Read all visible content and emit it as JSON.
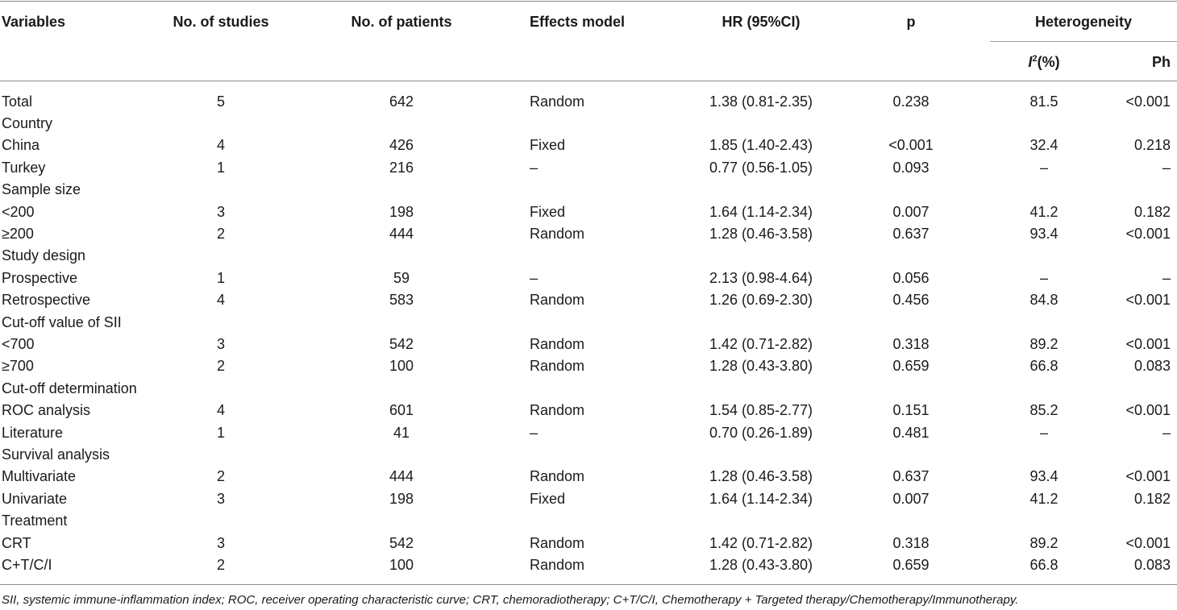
{
  "headers": {
    "variables": "Variables",
    "studies": "No. of studies",
    "patients": "No. of patients",
    "effects": "Effects model",
    "hr": "HR (95%CI)",
    "p": "p",
    "heterogeneity": "Heterogeneity",
    "i2_base": "I",
    "i2_sup": "2",
    "i2_suffix": "(%)",
    "ph": "Ph"
  },
  "rows": [
    {
      "variable": "Total",
      "studies": "5",
      "patients": "642",
      "effects": "Random",
      "hr": "1.38 (0.81-2.35)",
      "p": "0.238",
      "i2": "81.5",
      "ph": "<0.001"
    },
    {
      "variable": "Country",
      "studies": "",
      "patients": "",
      "effects": "",
      "hr": "",
      "p": "",
      "i2": "",
      "ph": ""
    },
    {
      "variable": "China",
      "studies": "4",
      "patients": "426",
      "effects": "Fixed",
      "hr": "1.85 (1.40-2.43)",
      "p": "<0.001",
      "i2": "32.4",
      "ph": "0.218"
    },
    {
      "variable": "Turkey",
      "studies": "1",
      "patients": "216",
      "effects": "–",
      "hr": "0.77 (0.56-1.05)",
      "p": "0.093",
      "i2": "–",
      "ph": "–"
    },
    {
      "variable": "Sample size",
      "studies": "",
      "patients": "",
      "effects": "",
      "hr": "",
      "p": "",
      "i2": "",
      "ph": ""
    },
    {
      "variable": "<200",
      "studies": "3",
      "patients": "198",
      "effects": "Fixed",
      "hr": "1.64 (1.14-2.34)",
      "p": "0.007",
      "i2": "41.2",
      "ph": "0.182"
    },
    {
      "variable": "≥200",
      "studies": "2",
      "patients": "444",
      "effects": "Random",
      "hr": "1.28 (0.46-3.58)",
      "p": "0.637",
      "i2": "93.4",
      "ph": "<0.001"
    },
    {
      "variable": "Study design",
      "studies": "",
      "patients": "",
      "effects": "",
      "hr": "",
      "p": "",
      "i2": "",
      "ph": ""
    },
    {
      "variable": "Prospective",
      "studies": "1",
      "patients": "59",
      "effects": "–",
      "hr": "2.13 (0.98-4.64)",
      "p": "0.056",
      "i2": "–",
      "ph": "–"
    },
    {
      "variable": "Retrospective",
      "studies": "4",
      "patients": "583",
      "effects": "Random",
      "hr": "1.26 (0.69-2.30)",
      "p": "0.456",
      "i2": "84.8",
      "ph": "<0.001"
    },
    {
      "variable": "Cut-off value of SII",
      "studies": "",
      "patients": "",
      "effects": "",
      "hr": "",
      "p": "",
      "i2": "",
      "ph": ""
    },
    {
      "variable": "<700",
      "studies": "3",
      "patients": "542",
      "effects": "Random",
      "hr": "1.42 (0.71-2.82)",
      "p": "0.318",
      "i2": "89.2",
      "ph": "<0.001"
    },
    {
      "variable": "≥700",
      "studies": "2",
      "patients": "100",
      "effects": "Random",
      "hr": "1.28 (0.43-3.80)",
      "p": "0.659",
      "i2": "66.8",
      "ph": "0.083"
    },
    {
      "variable": "Cut-off determination",
      "studies": "",
      "patients": "",
      "effects": "",
      "hr": "",
      "p": "",
      "i2": "",
      "ph": ""
    },
    {
      "variable": "ROC analysis",
      "studies": "4",
      "patients": "601",
      "effects": "Random",
      "hr": "1.54 (0.85-2.77)",
      "p": "0.151",
      "i2": "85.2",
      "ph": "<0.001"
    },
    {
      "variable": "Literature",
      "studies": "1",
      "patients": "41",
      "effects": "–",
      "hr": "0.70 (0.26-1.89)",
      "p": "0.481",
      "i2": "–",
      "ph": "–"
    },
    {
      "variable": "Survival analysis",
      "studies": "",
      "patients": "",
      "effects": "",
      "hr": "",
      "p": "",
      "i2": "",
      "ph": ""
    },
    {
      "variable": "Multivariate",
      "studies": "2",
      "patients": "444",
      "effects": "Random",
      "hr": "1.28 (0.46-3.58)",
      "p": "0.637",
      "i2": "93.4",
      "ph": "<0.001"
    },
    {
      "variable": "Univariate",
      "studies": "3",
      "patients": "198",
      "effects": "Fixed",
      "hr": "1.64 (1.14-2.34)",
      "p": "0.007",
      "i2": "41.2",
      "ph": "0.182"
    },
    {
      "variable": "Treatment",
      "studies": "",
      "patients": "",
      "effects": "",
      "hr": "",
      "p": "",
      "i2": "",
      "ph": ""
    },
    {
      "variable": "CRT",
      "studies": "3",
      "patients": "542",
      "effects": "Random",
      "hr": "1.42 (0.71-2.82)",
      "p": "0.318",
      "i2": "89.2",
      "ph": "<0.001"
    },
    {
      "variable": "C+T/C/I",
      "studies": "2",
      "patients": "100",
      "effects": "Random",
      "hr": "1.28 (0.43-3.80)",
      "p": "0.659",
      "i2": "66.8",
      "ph": "0.083"
    }
  ],
  "footnote": "SII, systemic immune-inflammation index; ROC, receiver operating characteristic curve; CRT, chemoradiotherapy; C+T/C/I, Chemotherapy + Targeted therapy/Chemotherapy/Immunotherapy."
}
